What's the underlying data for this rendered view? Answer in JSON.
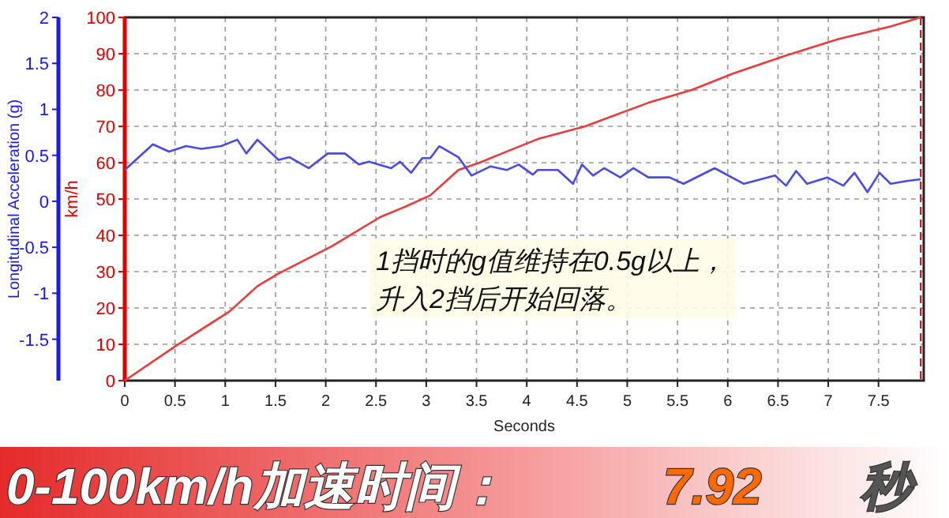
{
  "chart_data": {
    "type": "line",
    "xlabel": "Seconds",
    "ylabel": "km/h",
    "y2label": "Longitudinal Acceleration (g)",
    "xlim": [
      0,
      7.95
    ],
    "xticks": [
      0,
      0.5,
      1,
      1.5,
      2,
      2.5,
      3,
      3.5,
      4,
      4.5,
      5,
      5.5,
      6,
      6.5,
      7,
      7.5
    ],
    "ylim": [
      0,
      100
    ],
    "yticks": [
      0,
      10,
      20,
      30,
      40,
      50,
      60,
      70,
      80,
      90,
      100
    ],
    "y2lim": [
      -1.95,
      2
    ],
    "y2ticks": [
      -1.5,
      -1,
      -0.5,
      0,
      0.5,
      1,
      1.5,
      2
    ],
    "grid": true,
    "marker": "none",
    "line_style": "solid",
    "series": [
      {
        "color": "#ee3a3a",
        "x": [
          0,
          0.51,
          1.04,
          1.32,
          1.53,
          2.06,
          2.54,
          2.8,
          3.04,
          3.32,
          3.53,
          3.84,
          4.11,
          4.58,
          5.21,
          5.64,
          6.05,
          6.58,
          7.1,
          7.62,
          7.92
        ],
        "values": [
          0,
          9.6,
          19,
          26,
          29.5,
          37,
          45,
          48,
          51,
          58,
          60,
          63.5,
          66.5,
          70,
          76.5,
          80,
          84.5,
          89.5,
          94,
          97.5,
          100
        ]
      },
      {
        "color": "#4a4ae8",
        "axis": "y2",
        "x": [
          0,
          0.28,
          0.44,
          0.61,
          0.76,
          0.96,
          1.12,
          1.21,
          1.32,
          1.53,
          1.64,
          1.83,
          2.02,
          2.19,
          2.33,
          2.43,
          2.65,
          2.74,
          2.85,
          2.96,
          3.04,
          3.13,
          3.32,
          3.45,
          3.64,
          3.8,
          3.92,
          4.06,
          4.11,
          4.31,
          4.46,
          4.55,
          4.66,
          4.77,
          4.93,
          5.06,
          5.21,
          5.42,
          5.56,
          5.87,
          6.16,
          6.47,
          6.58,
          6.68,
          6.79,
          6.99,
          7.15,
          7.26,
          7.39,
          7.51,
          7.62,
          7.78,
          7.92
        ],
        "values": [
          0.34,
          0.62,
          0.54,
          0.6,
          0.57,
          0.6,
          0.67,
          0.52,
          0.67,
          0.45,
          0.48,
          0.36,
          0.52,
          0.52,
          0.4,
          0.43,
          0.36,
          0.43,
          0.31,
          0.47,
          0.47,
          0.6,
          0.48,
          0.28,
          0.38,
          0.34,
          0.4,
          0.29,
          0.34,
          0.34,
          0.19,
          0.4,
          0.28,
          0.36,
          0.26,
          0.36,
          0.26,
          0.26,
          0.19,
          0.36,
          0.19,
          0.28,
          0.17,
          0.33,
          0.19,
          0.26,
          0.17,
          0.31,
          0.1,
          0.31,
          0.19,
          0.22,
          0.24
        ]
      }
    ],
    "ref_lines": [
      {
        "axis": "x",
        "value": 7.92,
        "color": "#cc2222",
        "line_style": "dashed"
      }
    ],
    "annotations": [
      "1挡时的g值维持在0.5g以上，",
      "升入2挡后开始回落。",
      "0-100km/h加速时间：",
      "7.92",
      "秒"
    ]
  }
}
